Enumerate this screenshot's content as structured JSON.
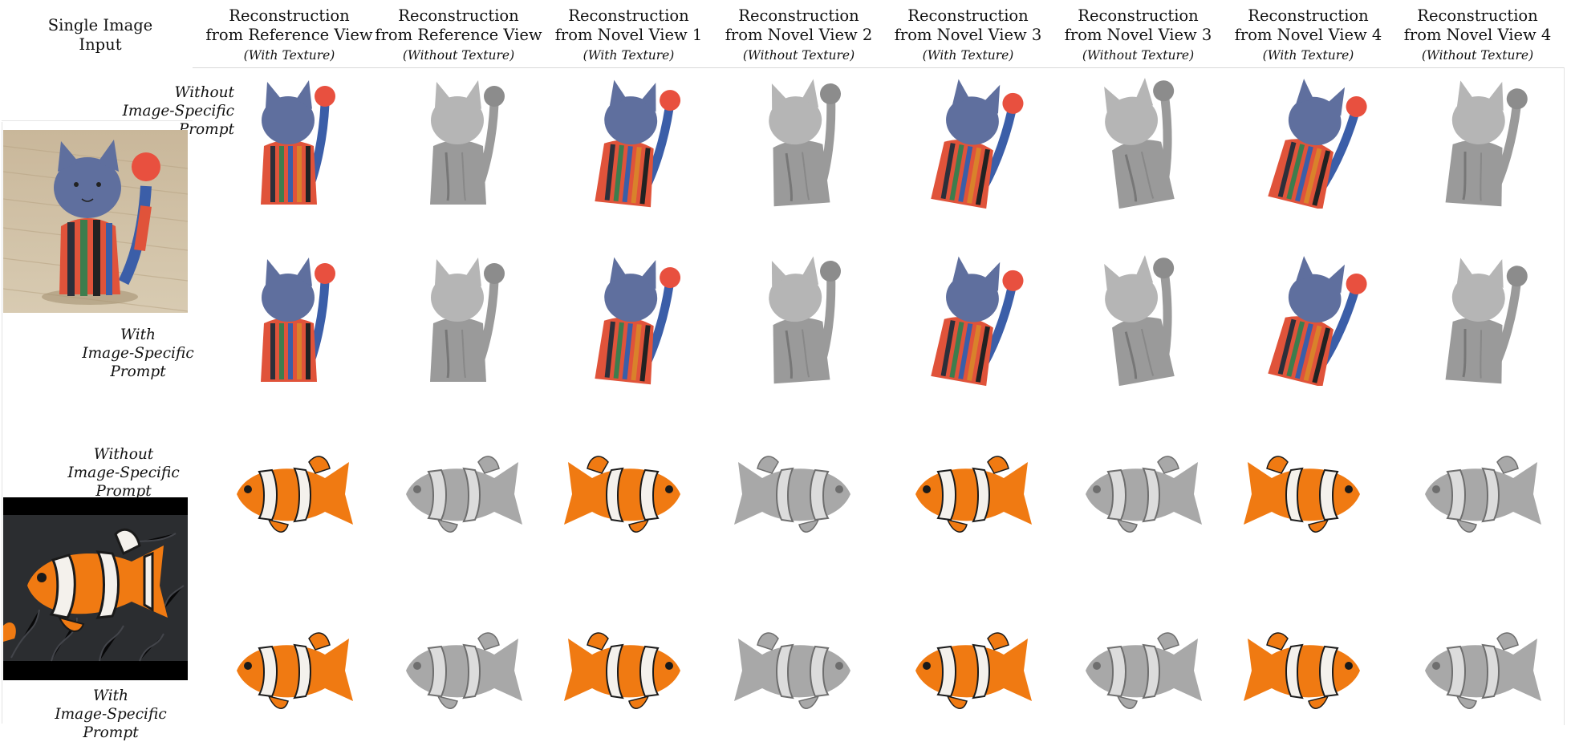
{
  "input_header": {
    "line1": "Single Image",
    "line2": "Input"
  },
  "columns": [
    {
      "line1": "Reconstruction",
      "line2": "from Reference View",
      "sub": "(With Texture)",
      "textured": true
    },
    {
      "line1": "Reconstruction",
      "line2": "from Reference View",
      "sub": "(Without Texture)",
      "textured": false
    },
    {
      "line1": "Reconstruction",
      "line2": "from Novel View 1",
      "sub": "(With Texture)",
      "textured": true
    },
    {
      "line1": "Reconstruction",
      "line2": "from Novel View 2",
      "sub": "(Without Texture)",
      "textured": false
    },
    {
      "line1": "Reconstruction",
      "line2": "from Novel View 3",
      "sub": "(With Texture)",
      "textured": true
    },
    {
      "line1": "Reconstruction",
      "line2": "from Novel View 3",
      "sub": "(Without Texture)",
      "textured": false
    },
    {
      "line1": "Reconstruction",
      "line2": "from Novel View 4",
      "sub": "(With Texture)",
      "textured": true
    },
    {
      "line1": "Reconstruction",
      "line2": "from Novel View 4",
      "sub": "(Without Texture)",
      "textured": false
    }
  ],
  "rows": [
    {
      "object": "cat",
      "prompt_line1": "Without",
      "prompt_line2": "Image-Specific Prompt"
    },
    {
      "object": "cat",
      "prompt_line1": "With",
      "prompt_line2": "Image-Specific Prompt"
    },
    {
      "object": "clownfish",
      "prompt_line1": "Without",
      "prompt_line2": "Image-Specific Prompt"
    },
    {
      "object": "clownfish",
      "prompt_line1": "With",
      "prompt_line2": "Image-Specific Prompt"
    }
  ],
  "inputs": [
    {
      "object": "cat",
      "image": "striped-ceramic-cat-photo"
    },
    {
      "object": "clownfish",
      "image": "clownfish-anemone-photo"
    }
  ],
  "colors": {
    "cat_head": "#5f6f9e",
    "cat_tail_ball": "#e8503f",
    "cat_stripes": [
      "#e0533a",
      "#2c2f3a",
      "#3d7d4d",
      "#3b5ea8",
      "#d9822b",
      "#222"
    ],
    "fish_orange": "#f07a12",
    "fish_white": "#f4f1ec",
    "fish_black": "#1a1a1a",
    "gray_render": "#9a9a9a"
  }
}
